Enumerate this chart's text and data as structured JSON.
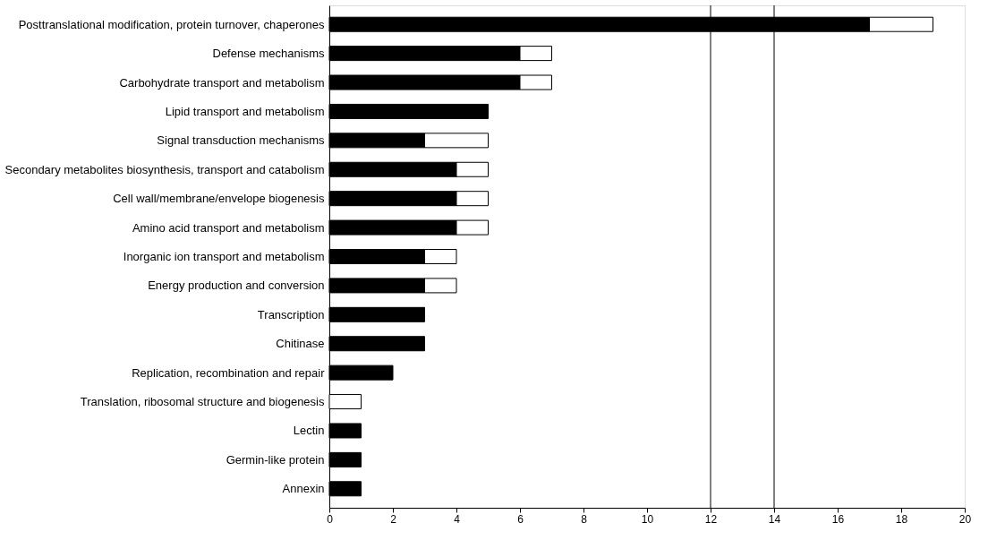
{
  "chart_data": {
    "type": "bar",
    "orientation": "horizontal",
    "stacked": true,
    "categories": [
      "Posttranslational modification, protein turnover, chaperones",
      "Defense mechanisms",
      "Carbohydrate transport and metabolism",
      "Lipid transport and metabolism",
      "Signal transduction mechanisms",
      "Secondary metabolites biosynthesis, transport and catabolism",
      "Cell wall/membrane/envelope biogenesis",
      "Amino acid transport and metabolism",
      "Inorganic ion transport and metabolism",
      "Energy production and conversion",
      "Transcription",
      "Chitinase",
      "Replication, recombination and repair",
      "Translation, ribosomal structure and biogenesis",
      "Lectin",
      "Germin-like protein",
      "Annexin"
    ],
    "series": [
      {
        "color": "#000000",
        "values": [
          17,
          6,
          6,
          5,
          3,
          4,
          4,
          4,
          3,
          3,
          3,
          3,
          2,
          null,
          1,
          1,
          1
        ]
      },
      {
        "color": "#ffffff",
        "values": [
          2,
          1,
          1,
          null,
          2,
          1,
          1,
          1,
          1,
          1,
          null,
          null,
          null,
          1,
          null,
          null,
          null
        ]
      }
    ],
    "xlim": [
      0,
      20
    ],
    "xticks": [
      0,
      2,
      4,
      6,
      8,
      10,
      12,
      14,
      16,
      18,
      20
    ],
    "ref_lines": [
      {
        "axis": "x",
        "value": 12
      },
      {
        "axis": "x",
        "value": 14
      }
    ],
    "grid": false
  }
}
